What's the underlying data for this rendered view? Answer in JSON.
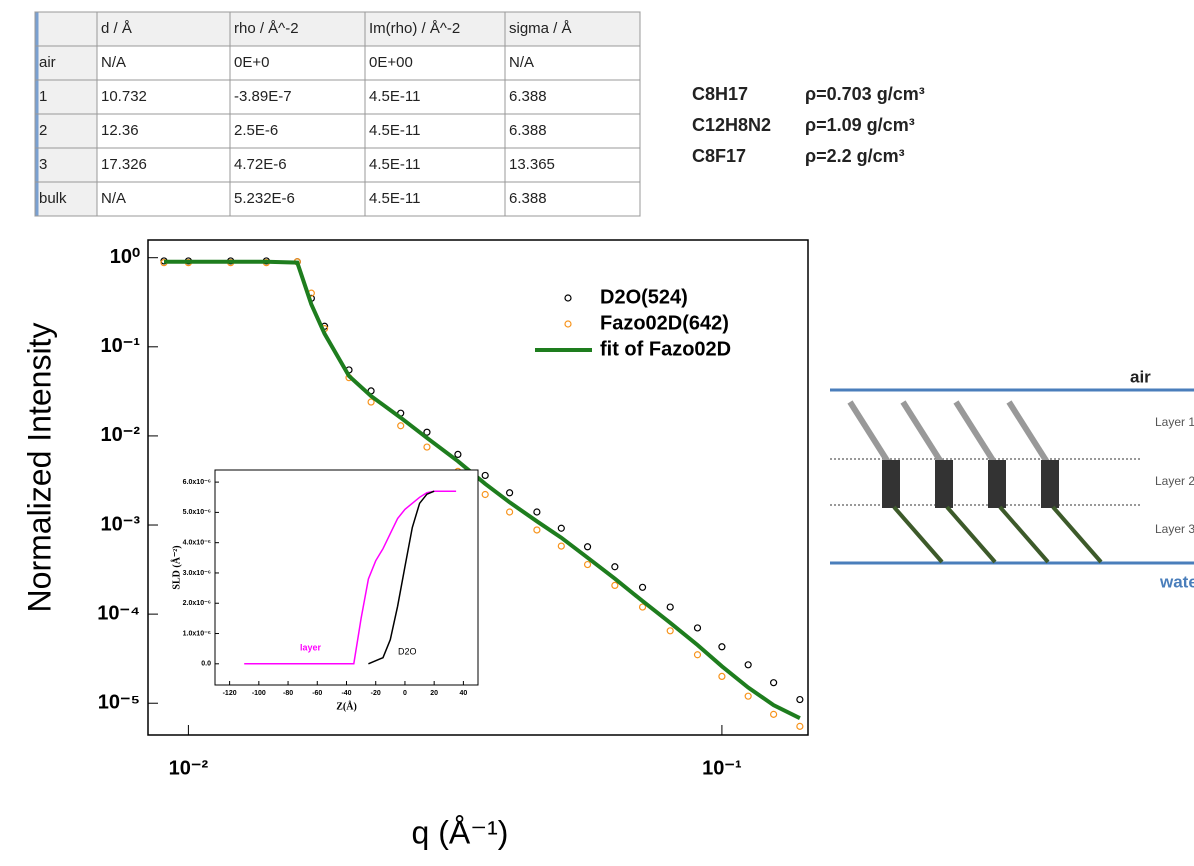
{
  "table": {
    "header": [
      "",
      "d / Å",
      "rho / Å^-2",
      "Im(rho) / Å^-2",
      "sigma / Å"
    ],
    "rows": [
      [
        "air",
        "N/A",
        "0E+0",
        "0E+00",
        "N/A"
      ],
      [
        "1",
        "10.732",
        "-3.89E-7",
        "4.5E-11",
        "6.388"
      ],
      [
        "2",
        "12.36",
        "2.5E-6",
        "4.5E-11",
        "6.388"
      ],
      [
        "3",
        "17.326",
        "4.72E-6",
        "4.5E-11",
        "13.365"
      ],
      [
        "bulk",
        "N/A",
        "5.232E-6",
        "4.5E-11",
        "6.388"
      ]
    ]
  },
  "formulas": [
    {
      "name": "C8H17",
      "density": "ρ=0.703 g/cm³"
    },
    {
      "name": "C12H8N2",
      "density": "ρ=1.09 g/cm³"
    },
    {
      "name": "C8F17",
      "density": "ρ=2.2 g/cm³"
    }
  ],
  "chart_data": [
    {
      "type": "scatter",
      "x_label": "q (Å⁻¹)",
      "y_label": "Normalized Intensity",
      "log_x": true,
      "log_y": true,
      "xlim": [
        0.0084,
        0.145
      ],
      "ylim": [
        4.4e-06,
        1.58
      ],
      "xticks": [
        {
          "value": 0.01,
          "label": "10⁻²"
        },
        {
          "value": 0.1,
          "label": "10⁻¹"
        }
      ],
      "yticks": [
        {
          "value": 1,
          "label": "10⁰"
        },
        {
          "value": 0.1,
          "label": "10⁻¹"
        },
        {
          "value": 0.01,
          "label": "10⁻²"
        },
        {
          "value": 0.001,
          "label": "10⁻³"
        },
        {
          "value": 0.0001,
          "label": "10⁻⁴"
        },
        {
          "value": 1e-05,
          "label": "10⁻⁵"
        }
      ],
      "x": [
        0.009,
        0.01,
        0.012,
        0.014,
        0.016,
        0.017,
        0.018,
        0.02,
        0.022,
        0.025,
        0.028,
        0.032,
        0.036,
        0.04,
        0.045,
        0.05,
        0.056,
        0.063,
        0.071,
        0.08,
        0.09,
        0.1,
        0.112,
        0.125,
        0.14
      ],
      "series": [
        {
          "name": "D2O(524)",
          "color": "#000000",
          "mode": "markers",
          "values": [
            0.92,
            0.92,
            0.92,
            0.92,
            0.9,
            0.35,
            0.17,
            0.055,
            0.032,
            0.018,
            0.011,
            0.0062,
            0.0036,
            0.0023,
            0.0014,
            0.00092,
            0.00057,
            0.00034,
            0.0002,
            0.00012,
            7e-05,
            4.3e-05,
            2.7e-05,
            1.7e-05,
            1.1e-05
          ]
        },
        {
          "name": "Fazo02D(642)",
          "color": "#f7941d",
          "mode": "markers",
          "values": [
            0.88,
            0.88,
            0.88,
            0.88,
            0.9,
            0.4,
            0.16,
            0.045,
            0.024,
            0.013,
            0.0075,
            0.004,
            0.0022,
            0.0014,
            0.00088,
            0.00058,
            0.00036,
            0.00021,
            0.00012,
            6.5e-05,
            3.5e-05,
            2e-05,
            1.2e-05,
            7.5e-06,
            5.5e-06
          ]
        },
        {
          "name": "fit of Fazo02D",
          "color": "#1e7d1e",
          "mode": "line",
          "values": [
            0.9,
            0.9,
            0.9,
            0.9,
            0.88,
            0.3,
            0.14,
            0.047,
            0.028,
            0.016,
            0.0095,
            0.0052,
            0.0029,
            0.0018,
            0.0011,
            0.00072,
            0.00043,
            0.00025,
            0.00014,
            8e-05,
            4.5e-05,
            2.6e-05,
            1.5e-05,
            9.5e-06,
            6.8e-06
          ]
        }
      ]
    },
    {
      "type": "line",
      "x_label": "Z(Å)",
      "y_label": "SLD (Å⁻²)",
      "xlim": [
        -130,
        50
      ],
      "ylim": [
        -7e-07,
        6.4e-06
      ],
      "xticks": [
        -120,
        -100,
        -80,
        -60,
        -40,
        -20,
        0,
        20,
        40
      ],
      "yticks": [
        {
          "value": 0,
          "label": "0.0"
        },
        {
          "value": 1e-06,
          "label": "1.0x10⁻⁶"
        },
        {
          "value": 2e-06,
          "label": "2.0x10⁻⁶"
        },
        {
          "value": 3e-06,
          "label": "3.0x10⁻⁶"
        },
        {
          "value": 4e-06,
          "label": "4.0x10⁻⁶"
        },
        {
          "value": 5e-06,
          "label": "5.0x10⁻⁶"
        },
        {
          "value": 6e-06,
          "label": "6.0x10⁻⁶"
        }
      ],
      "series": [
        {
          "name": "layer",
          "color": "#ff00ff",
          "x": [
            -110,
            -35,
            -30,
            -25,
            -20,
            -15,
            -10,
            -5,
            0,
            5,
            10,
            15,
            20,
            35
          ],
          "values": [
            0,
            0,
            1.5e-06,
            2.8e-06,
            3.4e-06,
            3.8e-06,
            4.3e-06,
            4.8e-06,
            5.1e-06,
            5.3e-06,
            5.5e-06,
            5.65e-06,
            5.7e-06,
            5.7e-06
          ]
        },
        {
          "name": "D2O",
          "color": "#000000",
          "x": [
            -25,
            -15,
            -10,
            -5,
            0,
            5,
            10,
            15,
            20
          ],
          "values": [
            0,
            2e-07,
            8e-07,
            1.9e-06,
            3.2e-06,
            4.5e-06,
            5.3e-06,
            5.6e-06,
            5.7e-06
          ]
        }
      ]
    }
  ],
  "diagram": {
    "labels": [
      "air",
      "Layer 1",
      "Layer 2",
      "Layer 3",
      "water"
    ]
  }
}
